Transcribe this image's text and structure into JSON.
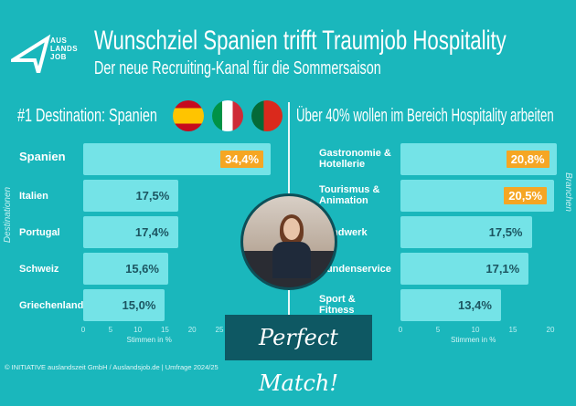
{
  "header": {
    "title": "Wunschziel Spanien trifft Traumjob Hospitality",
    "subtitle": "Der neue Recruiting-Kanal für die Sommersaison",
    "logo_text": [
      "AUS",
      "LANDS",
      "JOB"
    ]
  },
  "left": {
    "heading": "#1 Destination: Spanien",
    "flags": [
      "spain-flag",
      "italy-flag",
      "portugal-flag"
    ]
  },
  "right": {
    "heading": "Über 40% wollen im Bereich Hospitality arbeiten"
  },
  "badge": "Perfect Match!",
  "footer": "© INITIATIVE auslandszeit GmbH / Auslandsjob.de | Umfrage 2024/25",
  "colors": {
    "background": "#1ab7bc",
    "bar": "#74e3e7",
    "highlight": "#f5a623",
    "value_text": "#1c5561"
  },
  "chart_data": [
    {
      "type": "bar",
      "orientation": "horizontal",
      "categories": [
        "Spanien",
        "Italien",
        "Portugal",
        "Schweiz",
        "Griechenland"
      ],
      "values": [
        34.4,
        17.5,
        17.4,
        15.6,
        15.0
      ],
      "value_labels": [
        "34,4%",
        "17,5%",
        "17,4%",
        "15,6%",
        "15,0%"
      ],
      "highlighted": [
        true,
        false,
        false,
        false,
        false
      ],
      "xlabel": "Stimmen in %",
      "ylabel": "Destinationen",
      "xticks": [
        0,
        5,
        10,
        15,
        20,
        25
      ],
      "xlim": [
        0,
        25
      ],
      "grid": false
    },
    {
      "type": "bar",
      "orientation": "horizontal",
      "categories": [
        "Gastronomie & Hotellerie",
        "Tourismus & Animation",
        "Handwerk",
        "Kundenservice",
        "Sport & Fitness"
      ],
      "values": [
        20.8,
        20.5,
        17.5,
        17.1,
        13.4
      ],
      "value_labels": [
        "20,8%",
        "20,5%",
        "17,5%",
        "17,1%",
        "13,4%"
      ],
      "highlighted": [
        true,
        true,
        false,
        false,
        false
      ],
      "xlabel": "Stimmen in %",
      "ylabel": "Branchen",
      "xticks": [
        0,
        5,
        10,
        15,
        20
      ],
      "xlim": [
        0,
        20
      ],
      "grid": false
    }
  ]
}
